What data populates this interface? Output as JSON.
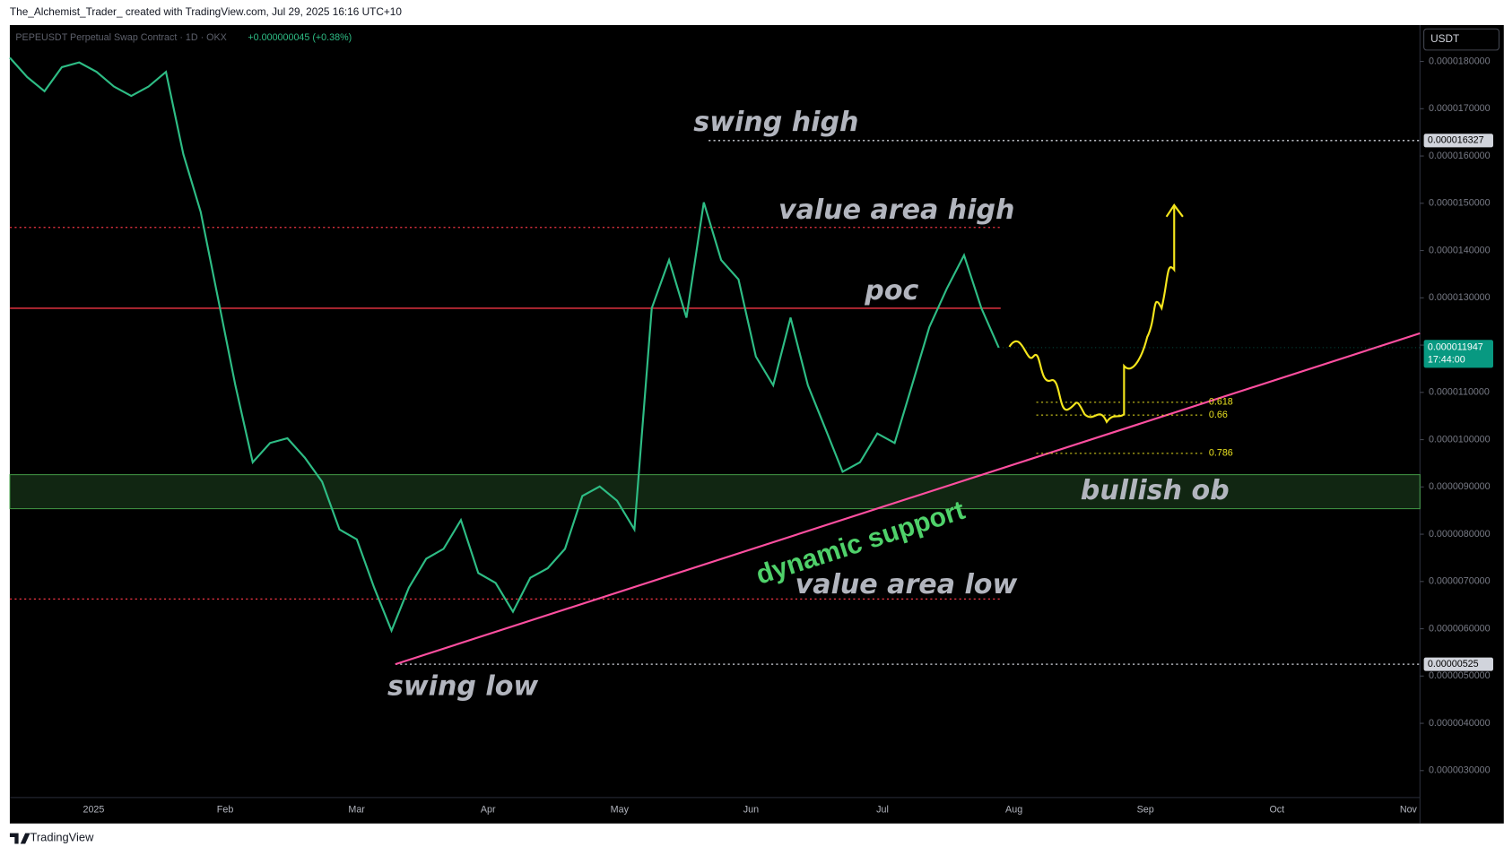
{
  "header": {
    "text": "The_Alchemist_Trader_ created with TradingView.com, Jul 29, 2025 16:16 UTC+10"
  },
  "chart_data": {
    "type": "line",
    "legend": "PEPEUSDT Perpetual Swap Contract · 1D · OKX",
    "change": "+0.000000045 (+0.38%)",
    "currency": "USDT",
    "color": "#2ebd85",
    "x_axis_labels": [
      "2025",
      "Feb",
      "Mar",
      "Apr",
      "May",
      "Jun",
      "Jul",
      "Aug",
      "Sep",
      "Oct",
      "Nov"
    ],
    "values": [
      1.808e-05,
      1.767e-05,
      1.737e-05,
      1.788e-05,
      1.798e-05,
      1.778e-05,
      1.747e-05,
      1.727e-05,
      1.747e-05,
      1.778e-05,
      1.604e-05,
      1.482e-05,
      1.299e-05,
      1.115e-05,
      9.52e-06,
      9.93e-06,
      1.003e-05,
      9.62e-06,
      9.11e-06,
      8.1e-06,
      7.89e-06,
      6.87e-06,
      5.96e-06,
      6.87e-06,
      7.48e-06,
      7.69e-06,
      8.3e-06,
      7.18e-06,
      6.97e-06,
      6.36e-06,
      7.08e-06,
      7.28e-06,
      7.69e-06,
      8.81e-06,
      9.01e-06,
      8.71e-06,
      8.1e-06,
      1.278e-05,
      1.38e-05,
      1.258e-05,
      1.502e-05,
      1.38e-05,
      1.339e-05,
      1.176e-05,
      1.115e-05,
      1.258e-05,
      1.115e-05,
      1.024e-05,
      9.32e-06,
      9.52e-06,
      1.013e-05,
      9.93e-06,
      1.115e-05,
      1.238e-05,
      1.319e-05,
      1.39e-05,
      1.278e-05,
      1.1947e-05
    ],
    "ylim": [
      2.43e-06,
      1.877e-05
    ],
    "yticks": [
      {
        "value": 3e-06,
        "label": "0.0000030000"
      },
      {
        "value": 4e-06,
        "label": "0.0000040000"
      },
      {
        "value": 5e-06,
        "label": "0.0000050000"
      },
      {
        "value": 6e-06,
        "label": "0.0000060000"
      },
      {
        "value": 7e-06,
        "label": "0.0000070000"
      },
      {
        "value": 8e-06,
        "label": "0.0000080000"
      },
      {
        "value": 9e-06,
        "label": "0.0000090000"
      },
      {
        "value": 1e-05,
        "label": "0.0000100000"
      },
      {
        "value": 1.1e-05,
        "label": "0.0000110000"
      },
      {
        "value": 1.2e-05,
        "label": "0.0000120000"
      },
      {
        "value": 1.3e-05,
        "label": "0.0000130000"
      },
      {
        "value": 1.4e-05,
        "label": "0.0000140000"
      },
      {
        "value": 1.5e-05,
        "label": "0.0000150000"
      },
      {
        "value": 1.6e-05,
        "label": "0.0000160000"
      },
      {
        "value": 1.7e-05,
        "label": "0.0000170000"
      },
      {
        "value": 1.8e-05,
        "label": "0.0000180000"
      }
    ],
    "last_price": 1.1947e-05,
    "countdown": "17:44:00",
    "levels": [
      {
        "text": "swing high",
        "value": 1.6327e-05,
        "color": "#d1d4dc",
        "style": "dotted",
        "tag": true
      },
      {
        "text": "value area high",
        "value": 1.449e-05,
        "color": "#f23645",
        "style": "dotted",
        "tag": false
      },
      {
        "text": "poc",
        "value": 1.278e-05,
        "color": "#f23645",
        "style": "solid",
        "tag": false
      },
      {
        "text": "value area low",
        "value": 6.63e-06,
        "color": "#f23645",
        "style": "dotted",
        "tag": false
      },
      {
        "text": "swing low",
        "value": 5.25e-06,
        "color": "#d1d4dc",
        "style": "dotted",
        "tag": true
      }
    ],
    "bullish_ob": {
      "text": "bullish ob",
      "range": [
        8.54e-06,
        9.26e-06
      ],
      "color": "#4caf50"
    },
    "dynamic_support": {
      "text": "dynamic support",
      "from": 5.25e-06,
      "to": 1.225e-05,
      "color": "#ff4fa0",
      "text_color": "#4fd16a"
    },
    "fibs": [
      {
        "ratio": 0.618,
        "price": 1.079e-05
      },
      {
        "ratio": 0.66,
        "price": 1.052e-05
      },
      {
        "ratio": 0.786,
        "price": 9.71e-06
      }
    ],
    "fib_color": "#e8e020"
  },
  "footer": {
    "brand": "TradingView"
  }
}
